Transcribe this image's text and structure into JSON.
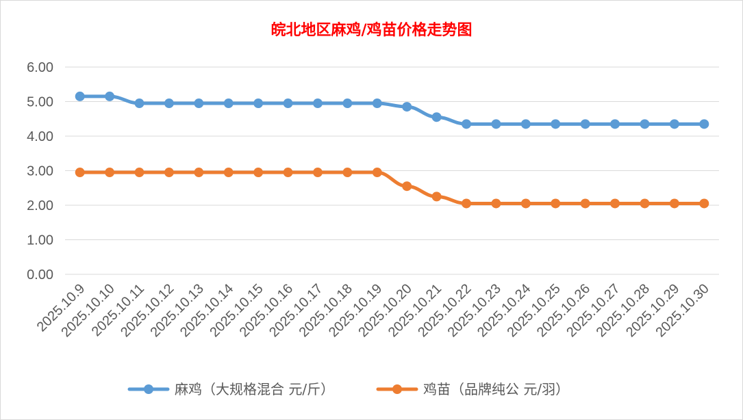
{
  "chart_data": {
    "type": "line",
    "title": "皖北地区麻鸡/鸡苗价格走势图",
    "categories": [
      "2025.10.9",
      "2025.10.10",
      "2025.10.11",
      "2025.10.12",
      "2025.10.13",
      "2025.10.14",
      "2025.10.15",
      "2025.10.16",
      "2025.10.17",
      "2025.10.18",
      "2025.10.19",
      "2025.10.20",
      "2025.10.21",
      "2025.10.22",
      "2025.10.23",
      "2025.10.24",
      "2025.10.25",
      "2025.10.26",
      "2025.10.27",
      "2025.10.28",
      "2025.10.29",
      "2025.10.30"
    ],
    "series": [
      {
        "name": "麻鸡（大规格混合 元/斤）",
        "color": "#5b9bd5",
        "values": [
          5.15,
          5.15,
          4.95,
          4.95,
          4.95,
          4.95,
          4.95,
          4.95,
          4.95,
          4.95,
          4.95,
          4.85,
          4.55,
          4.35,
          4.35,
          4.35,
          4.35,
          4.35,
          4.35,
          4.35,
          4.35,
          4.35
        ]
      },
      {
        "name": "鸡苗（品牌纯公 元/羽）",
        "color": "#ed7d31",
        "values": [
          2.95,
          2.95,
          2.95,
          2.95,
          2.95,
          2.95,
          2.95,
          2.95,
          2.95,
          2.95,
          2.95,
          2.55,
          2.25,
          2.05,
          2.05,
          2.05,
          2.05,
          2.05,
          2.05,
          2.05,
          2.05,
          2.05
        ]
      }
    ],
    "ylim": [
      0,
      6
    ],
    "yticks": [
      "0.00",
      "1.00",
      "2.00",
      "3.00",
      "4.00",
      "5.00",
      "6.00"
    ],
    "xlabel": "",
    "ylabel": "",
    "grid": true,
    "legend_position": "bottom"
  }
}
